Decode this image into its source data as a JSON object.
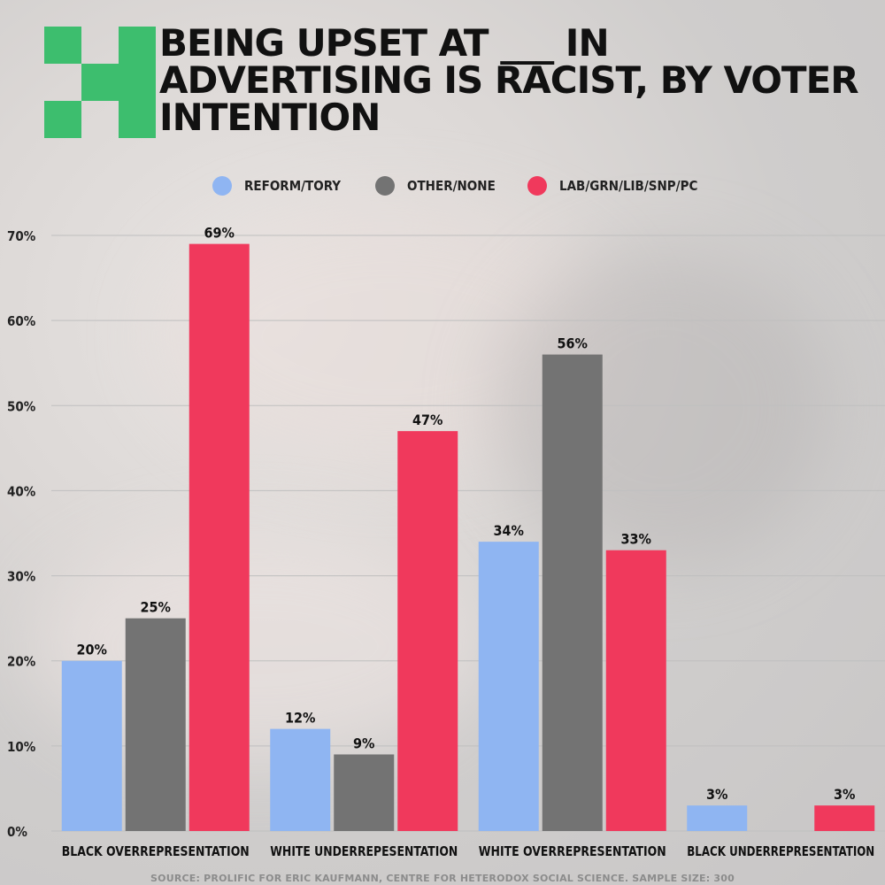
{
  "header": {
    "title": "BEING UPSET AT ___ IN ADVERTISING IS RACIST, BY VOTER INTENTION"
  },
  "footer": {
    "source": "SOURCE: PROLIFIC FOR ERIC KAUFMANN, CENTRE FOR HETERODOX SOCIAL SCIENCE. SAMPLE SIZE: 300"
  },
  "legend": [
    {
      "label": "REFORM/TORY",
      "color": "#8fb5f2"
    },
    {
      "label": "OTHER/NONE",
      "color": "#737373"
    },
    {
      "label": "LAB/GRN/LIB/SNP/PC",
      "color": "#f0395c"
    }
  ],
  "colors": {
    "logo": "#3dbe6e",
    "grid": "#bfbfbf",
    "text": "#111111"
  },
  "chart_data": {
    "type": "bar",
    "categories": [
      "BLACK OVERREPRESENTATION",
      "WHITE UNDERREPESENTATION",
      "WHITE OVERREPRESENTATION",
      "BLACK UNDERREPRESENTATION"
    ],
    "series": [
      {
        "name": "REFORM/TORY",
        "values": [
          20,
          12,
          34,
          3
        ],
        "labels": [
          "20%",
          "12%",
          "34%",
          "3%"
        ]
      },
      {
        "name": "OTHER/NONE",
        "values": [
          25,
          9,
          56,
          0
        ],
        "labels": [
          "25%",
          "9%",
          "56%",
          ""
        ]
      },
      {
        "name": "LAB/GRN/LIB/SNP/PC",
        "values": [
          69,
          47,
          33,
          3
        ],
        "labels": [
          "69%",
          "47%",
          "33%",
          "3%"
        ]
      }
    ],
    "ylim": [
      0,
      70
    ],
    "yticks": [
      0,
      10,
      20,
      30,
      40,
      50,
      60,
      70
    ],
    "ytick_labels": [
      "0%",
      "10%",
      "20%",
      "30%",
      "40%",
      "50%",
      "60%",
      "70%"
    ],
    "grid": true,
    "legend_position": "top-center"
  }
}
